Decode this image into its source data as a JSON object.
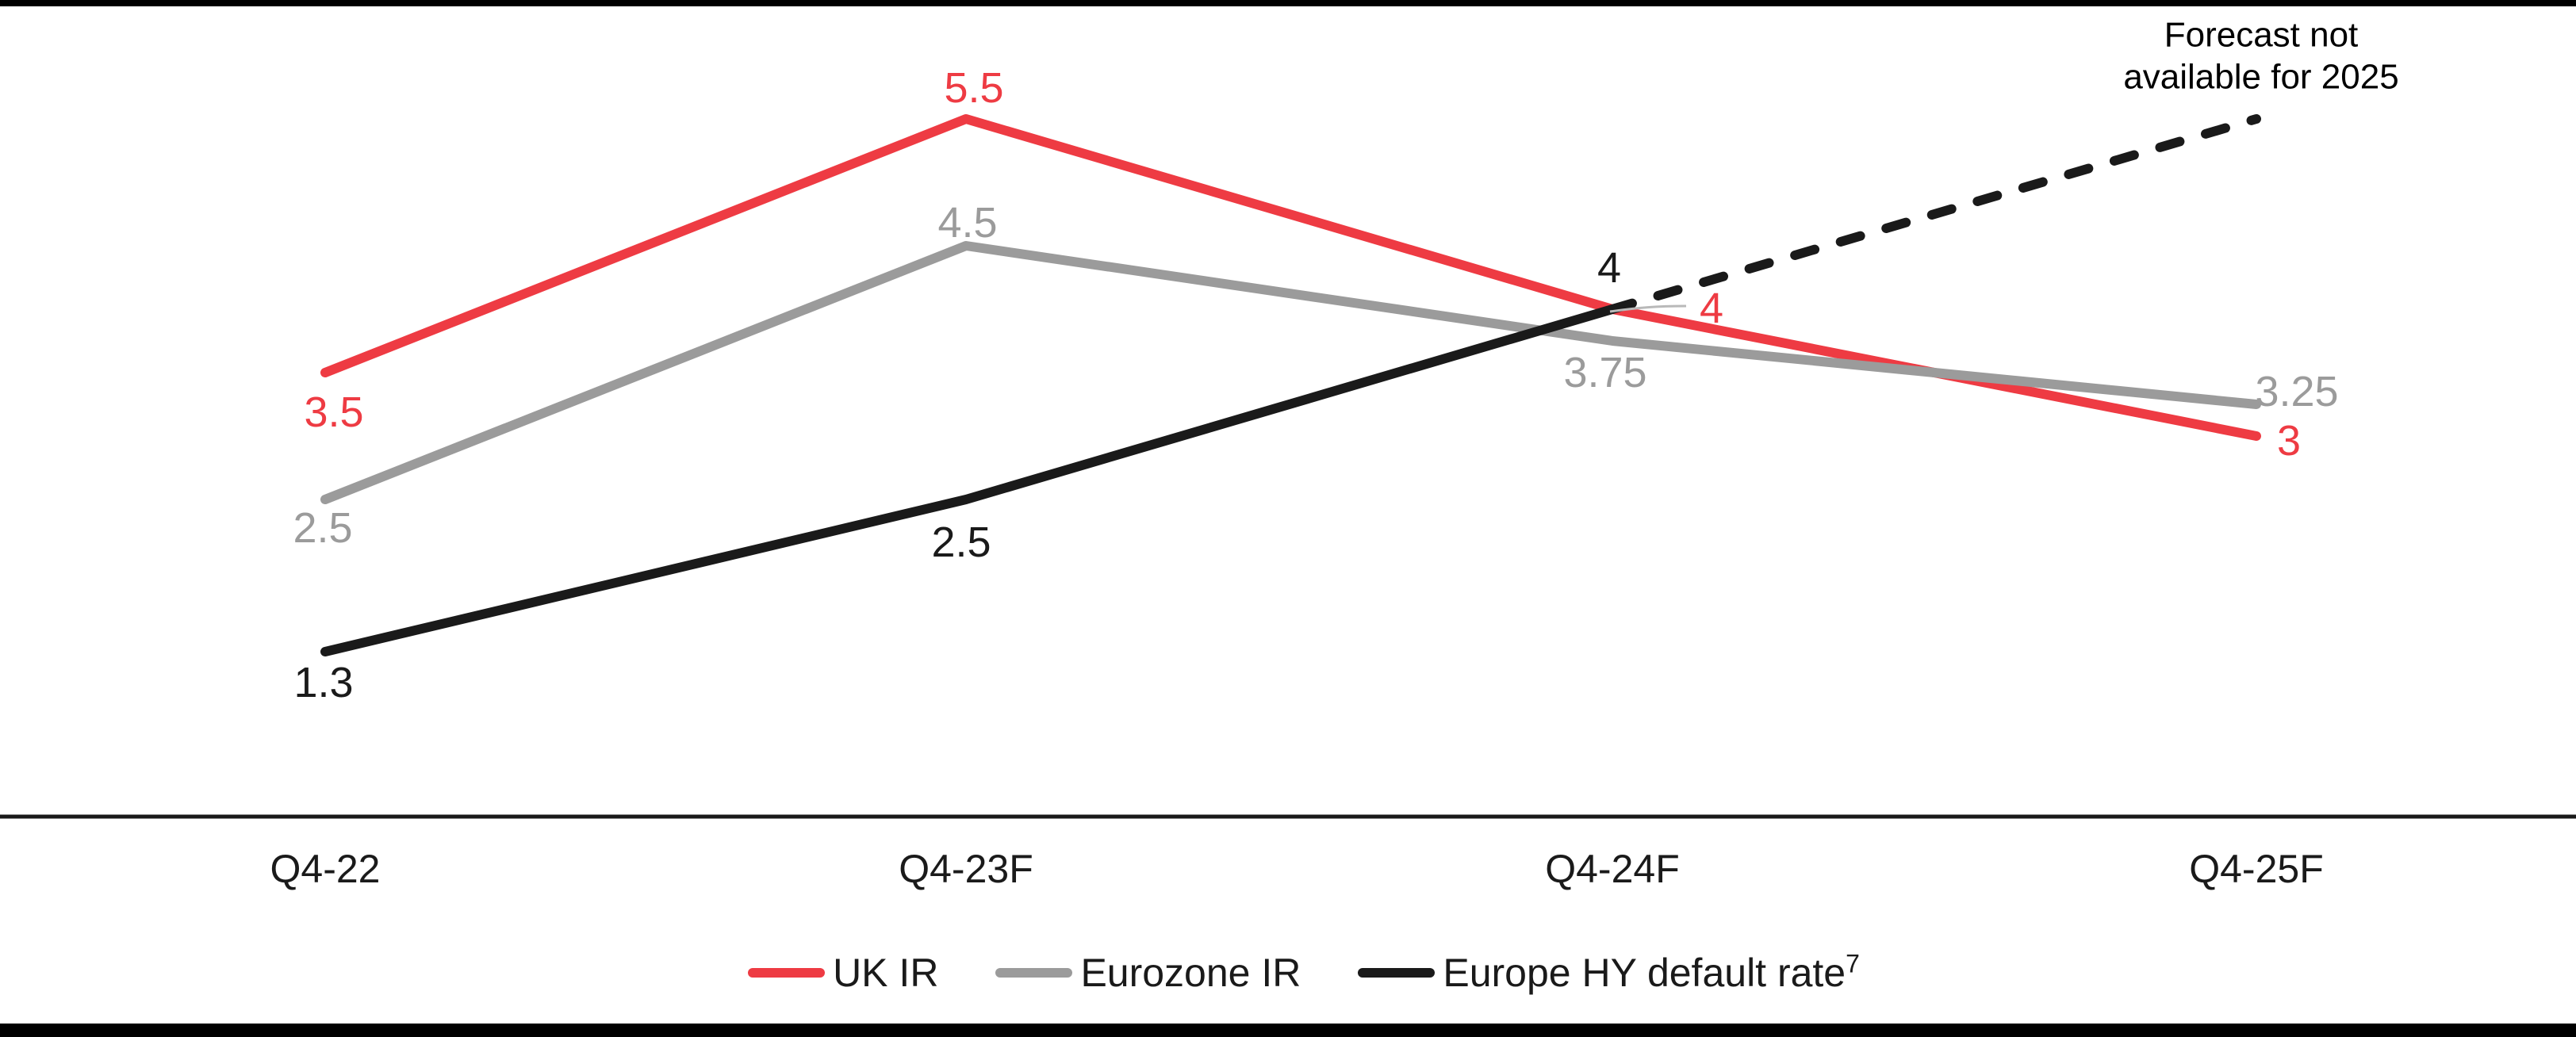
{
  "page": {
    "background": "#ffffff",
    "top_border_color": "#000000",
    "bottom_border_color": "#000000",
    "axis_line_color": "#1a1a1a",
    "leader_line_color": "#b9b9b9"
  },
  "chart_data": {
    "type": "line",
    "categories": [
      "Q4-22",
      "Q4-23F",
      "Q4-24F",
      "Q4-25F"
    ],
    "series": [
      {
        "name": "UK IR",
        "color": "#ee3b43",
        "style": "solid",
        "values": [
          3.5,
          5.5,
          4,
          3
        ],
        "data_labels": [
          "3.5",
          "5.5",
          "4",
          "3"
        ]
      },
      {
        "name": "Eurozone IR",
        "color": "#9b9b9b",
        "style": "solid",
        "values": [
          2.5,
          4.5,
          3.75,
          3.25
        ],
        "data_labels": [
          "2.5",
          "4.5",
          "3.75",
          "3.25"
        ]
      },
      {
        "name": "Europe HY default rate",
        "name_sup": "7",
        "color": "#1a1a1a",
        "style": "solid",
        "values": [
          1.3,
          2.5,
          4,
          null
        ],
        "data_labels": [
          "1.3",
          "2.5",
          "4",
          ""
        ]
      }
    ],
    "forecast_segment": {
      "series": "Europe HY default rate",
      "style": "dashed",
      "color": "#1a1a1a",
      "from": {
        "category": "Q4-24F",
        "value": 4
      },
      "to": {
        "category": "Q4-25F",
        "value": 5.5
      },
      "annotation_lines": [
        "Forecast not",
        "available for 2025"
      ]
    },
    "axis": {
      "x_tick_labels": [
        "Q4-22",
        "Q4-23F",
        "Q4-24F",
        "Q4-25F"
      ],
      "y_axis_visible": false,
      "ylim": [
        0,
        6.4
      ],
      "gridlines": false,
      "baseline_visible": true
    },
    "legend": {
      "position": "bottom-center",
      "items": [
        {
          "label": "UK IR",
          "color": "#ee3b43"
        },
        {
          "label": "Eurozone IR",
          "color": "#9b9b9b"
        },
        {
          "label": "Europe HY default rate",
          "sup": "7",
          "color": "#1a1a1a"
        }
      ]
    }
  }
}
